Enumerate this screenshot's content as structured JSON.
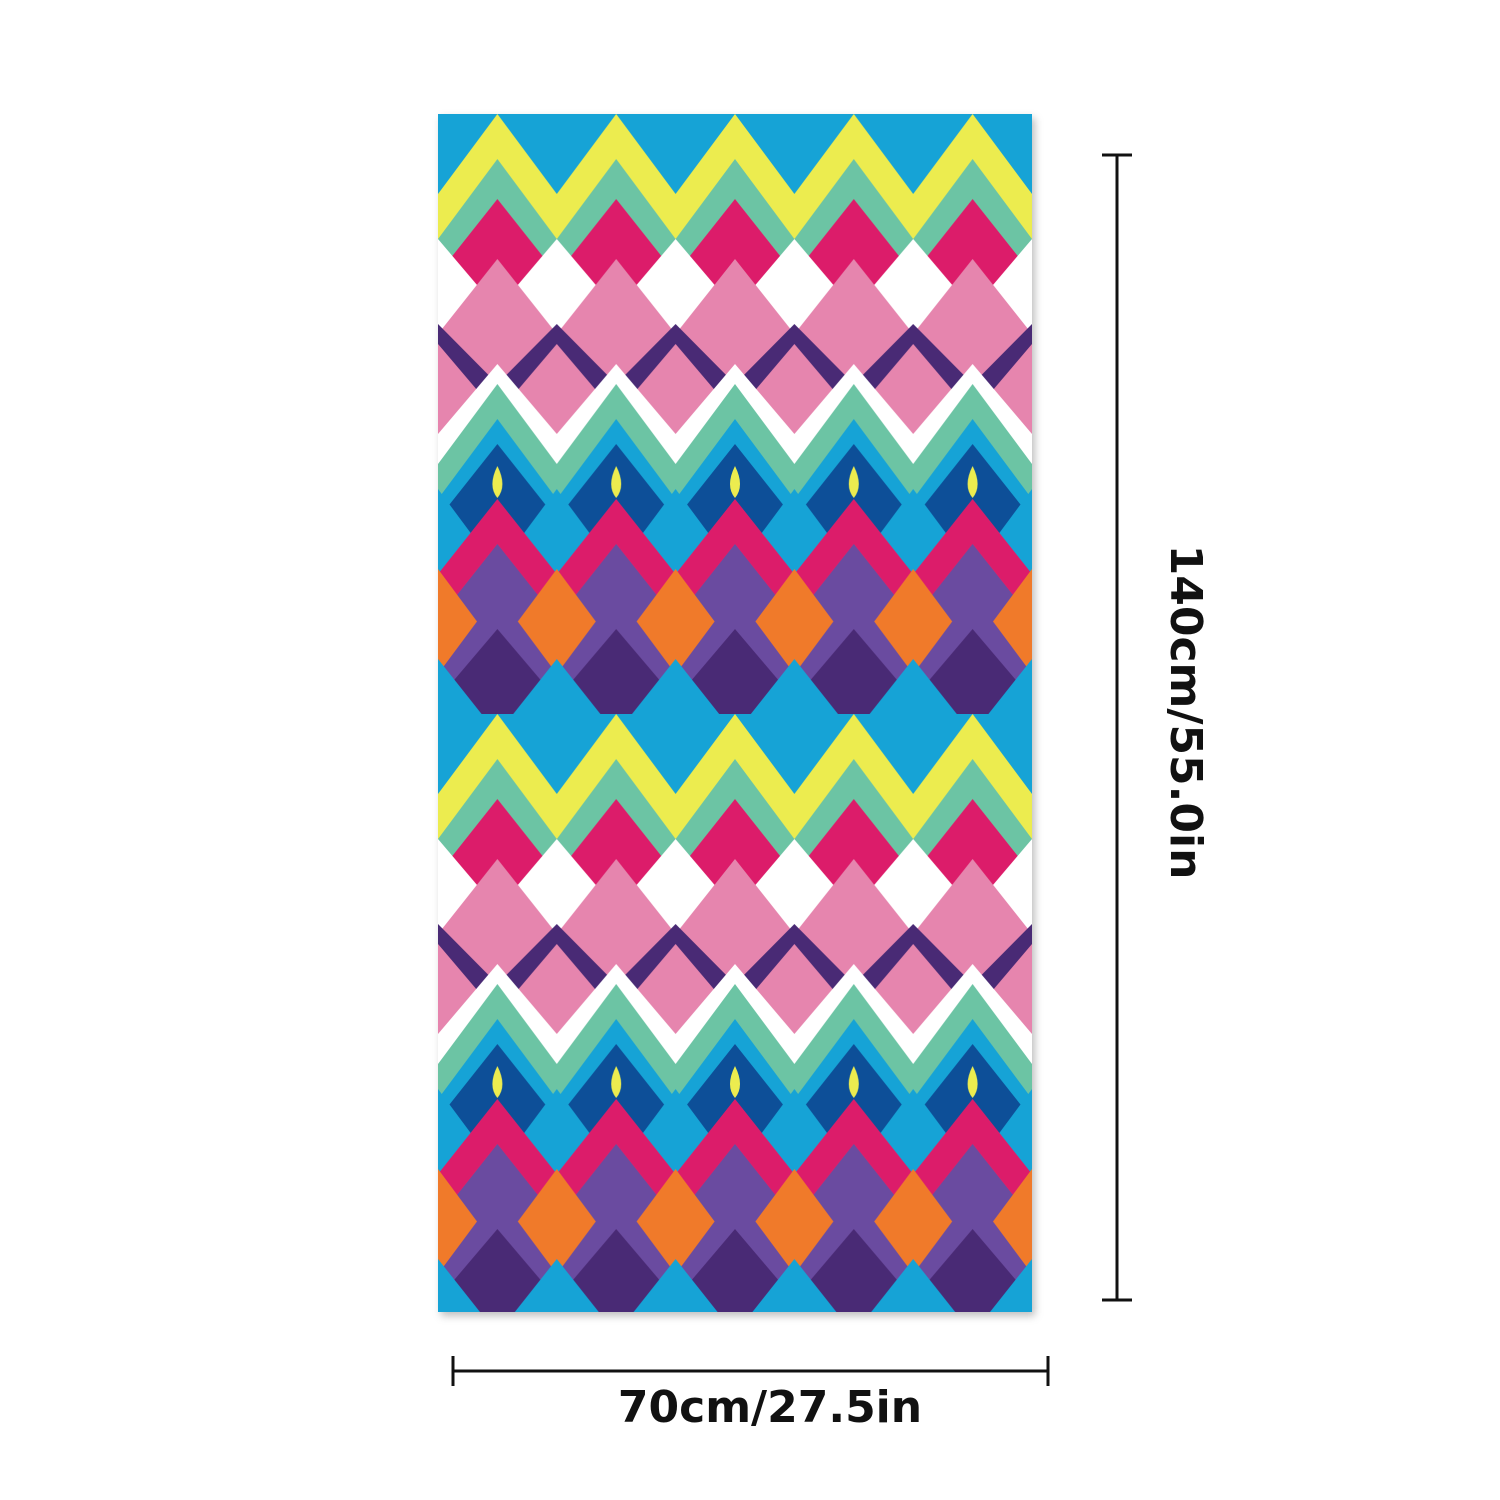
{
  "product": {
    "height_label": "140cm/55.0in",
    "width_label": "70cm/27.5in"
  }
}
